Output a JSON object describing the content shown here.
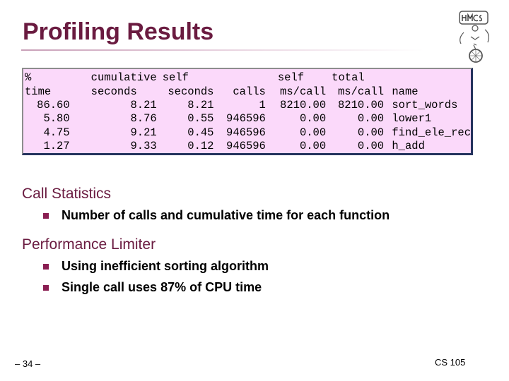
{
  "title": "Profiling Results",
  "profile": {
    "header1": [
      "%",
      "cumulative",
      "self",
      "",
      "self",
      "total",
      ""
    ],
    "header2": [
      "time",
      "seconds",
      "seconds",
      "calls",
      "ms/call",
      "ms/call",
      "name"
    ],
    "rows": [
      [
        "86.60",
        "8.21",
        "8.21",
        "1",
        "8210.00",
        "8210.00",
        "sort_words"
      ],
      [
        "5.80",
        "8.76",
        "0.55",
        "946596",
        "0.00",
        "0.00",
        "lower1"
      ],
      [
        "4.75",
        "9.21",
        "0.45",
        "946596",
        "0.00",
        "0.00",
        "find_ele_rec"
      ],
      [
        "1.27",
        "9.33",
        "0.12",
        "946596",
        "0.00",
        "0.00",
        "h_add"
      ]
    ]
  },
  "sections": [
    {
      "heading": "Call Statistics",
      "bullets": [
        "Number of calls and cumulative time for each function"
      ]
    },
    {
      "heading": "Performance Limiter",
      "bullets": [
        "Using inefficient sorting algorithm",
        "Single call uses 87% of CPU time"
      ]
    }
  ],
  "footer": {
    "page": "– 34 –",
    "course": "CS 105"
  },
  "colors": {
    "title": "#6a1b40",
    "box_bg": "#fbd9fa",
    "box_shadow": "#25335e",
    "bullet": "#8a1e52"
  },
  "logo_icon": "hmc-cs-logo"
}
